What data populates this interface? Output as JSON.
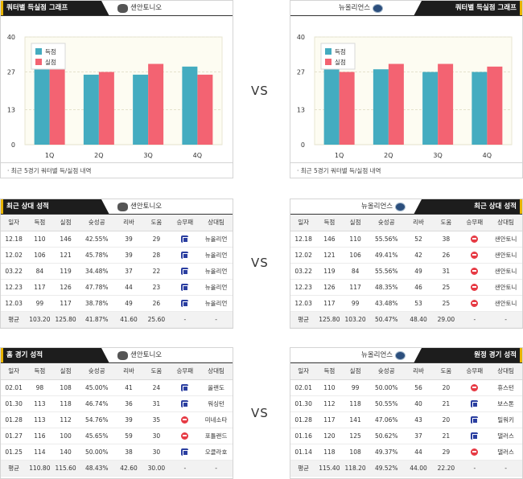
{
  "vs_label": "VS",
  "colors": {
    "score": "#44acc0",
    "concede": "#f36372"
  },
  "quarter": {
    "left": {
      "title": "쿼터별 득실점 그래프",
      "team": "샌안토니오",
      "footer": "최근 5경기 쿼터별 득/실점 내역",
      "chart_data": {
        "type": "bar",
        "categories": [
          "1Q",
          "2Q",
          "3Q",
          "4Q"
        ],
        "series": [
          {
            "name": "득점",
            "values": [
              29,
              26,
              26,
              29
            ]
          },
          {
            "name": "실점",
            "values": [
              31,
              27,
              30,
              26
            ]
          }
        ],
        "yticks": [
          "0",
          "13",
          "27",
          "40"
        ],
        "ylim": [
          0,
          40
        ]
      }
    },
    "right": {
      "title": "쿼터별 득실점 그래프",
      "team": "뉴올리언스",
      "footer": "최근 5경기 쿼터별 득/실점 내역",
      "chart_data": {
        "type": "bar",
        "categories": [
          "1Q",
          "2Q",
          "3Q",
          "4Q"
        ],
        "series": [
          {
            "name": "득점",
            "values": [
              29,
              28,
              27,
              27
            ]
          },
          {
            "name": "실점",
            "values": [
              27,
              30,
              30,
              29
            ]
          }
        ],
        "yticks": [
          "0",
          "13",
          "27",
          "40"
        ],
        "ylim": [
          0,
          40
        ]
      }
    }
  },
  "columns": [
    "일자",
    "득점",
    "실점",
    "슛성공",
    "리바",
    "도움",
    "승무패",
    "상대팀"
  ],
  "recent": {
    "left": {
      "title": "최근 상대 성적",
      "team": "샌안토니오",
      "rows": [
        [
          "12.18",
          "110",
          "146",
          "42.55%",
          "39",
          "29",
          "win",
          "뉴올리언"
        ],
        [
          "12.02",
          "106",
          "121",
          "45.78%",
          "39",
          "28",
          "win",
          "뉴올리언"
        ],
        [
          "03.22",
          "84",
          "119",
          "34.48%",
          "37",
          "22",
          "win",
          "뉴올리언"
        ],
        [
          "12.23",
          "117",
          "126",
          "47.78%",
          "44",
          "23",
          "win",
          "뉴올리언"
        ],
        [
          "12.03",
          "99",
          "117",
          "38.78%",
          "49",
          "26",
          "win",
          "뉴올리언"
        ]
      ],
      "avg": [
        "평균",
        "103.20",
        "125.80",
        "41.87%",
        "41.60",
        "25.60",
        "-",
        "-"
      ]
    },
    "right": {
      "title": "최근 상대 성적",
      "team": "뉴올리언스",
      "rows": [
        [
          "12.18",
          "146",
          "110",
          "55.56%",
          "52",
          "38",
          "loss",
          "샌안토니"
        ],
        [
          "12.02",
          "121",
          "106",
          "49.41%",
          "42",
          "26",
          "loss",
          "샌안토니"
        ],
        [
          "03.22",
          "119",
          "84",
          "55.56%",
          "49",
          "31",
          "loss",
          "샌안토니"
        ],
        [
          "12.23",
          "126",
          "117",
          "48.35%",
          "46",
          "25",
          "loss",
          "샌안토니"
        ],
        [
          "12.03",
          "117",
          "99",
          "43.48%",
          "53",
          "25",
          "loss",
          "샌안토니"
        ]
      ],
      "avg": [
        "평균",
        "125.80",
        "103.20",
        "50.47%",
        "48.40",
        "29.00",
        "-",
        "-"
      ]
    }
  },
  "venue": {
    "left": {
      "title": "홈 경기 성적",
      "team": "샌안토니오",
      "rows": [
        [
          "02.01",
          "98",
          "108",
          "45.00%",
          "41",
          "24",
          "win",
          "올랜도"
        ],
        [
          "01.30",
          "113",
          "118",
          "46.74%",
          "36",
          "31",
          "win",
          "워싱턴"
        ],
        [
          "01.28",
          "113",
          "112",
          "54.76%",
          "39",
          "35",
          "loss",
          "미네소타"
        ],
        [
          "01.27",
          "116",
          "100",
          "45.65%",
          "59",
          "30",
          "loss",
          "포틀랜드"
        ],
        [
          "01.25",
          "114",
          "140",
          "50.00%",
          "38",
          "30",
          "win",
          "오클라호"
        ]
      ],
      "avg": [
        "평균",
        "110.80",
        "115.60",
        "48.43%",
        "42.60",
        "30.00",
        "-",
        "-"
      ]
    },
    "right": {
      "title": "원정 경기 성적",
      "team": "뉴올리언스",
      "rows": [
        [
          "02.01",
          "110",
          "99",
          "50.00%",
          "56",
          "20",
          "loss",
          "휴스턴"
        ],
        [
          "01.30",
          "112",
          "118",
          "50.55%",
          "40",
          "21",
          "win",
          "보스톤"
        ],
        [
          "01.28",
          "117",
          "141",
          "47.06%",
          "43",
          "20",
          "win",
          "밀워키"
        ],
        [
          "01.16",
          "120",
          "125",
          "50.62%",
          "37",
          "21",
          "win",
          "댈러스"
        ],
        [
          "01.14",
          "118",
          "108",
          "49.37%",
          "44",
          "29",
          "loss",
          "댈러스"
        ]
      ],
      "avg": [
        "평균",
        "115.40",
        "118.20",
        "49.52%",
        "44.00",
        "22.20",
        "-",
        "-"
      ]
    }
  }
}
